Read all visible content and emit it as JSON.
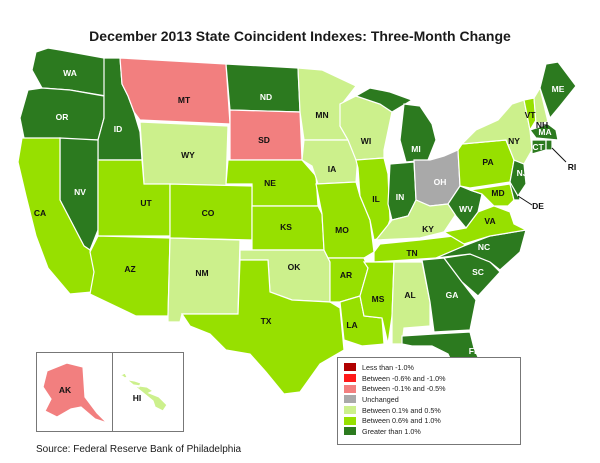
{
  "title": "December 2013 State Coincident Indexes: Three-Month Change",
  "source": "Source: Federal Reserve Bank of Philadelphia",
  "colors": {
    "lt_neg1": "#b00000",
    "neg06_neg10": "#ff1a1a",
    "neg01_neg05": "#f27f7f",
    "unchanged": "#a9a9a9",
    "p01_p05": "#ccf08c",
    "p06_p10": "#97e000",
    "gt1": "#2c7a1f"
  },
  "legend": [
    {
      "label": "Less than -1.0%",
      "color_key": "lt_neg1"
    },
    {
      "label": "Between -0.6% and -1.0%",
      "color_key": "neg06_neg10"
    },
    {
      "label": "Between -0.1% and -0.5%",
      "color_key": "neg01_neg05"
    },
    {
      "label": "Unchanged",
      "color_key": "unchanged"
    },
    {
      "label": "Between 0.1% and 0.5%",
      "color_key": "p01_p05"
    },
    {
      "label": "Between 0.6% and 1.0%",
      "color_key": "p06_p10"
    },
    {
      "label": "Greater than 1.0%",
      "color_key": "gt1"
    }
  ],
  "states": {
    "WA": "gt1",
    "OR": "gt1",
    "ID": "gt1",
    "MT": "neg01_neg05",
    "ND": "gt1",
    "SD": "neg01_neg05",
    "WY": "p01_p05",
    "NV": "gt1",
    "CA": "p06_p10",
    "UT": "p06_p10",
    "CO": "p06_p10",
    "AZ": "p06_p10",
    "NM": "p01_p05",
    "NE": "p06_p10",
    "KS": "p06_p10",
    "OK": "p01_p05",
    "TX": "p06_p10",
    "MN": "p01_p05",
    "IA": "p01_p05",
    "MO": "p06_p10",
    "AR": "p06_p10",
    "LA": "p06_p10",
    "WI": "p01_p05",
    "IL": "p06_p10",
    "MI": "gt1",
    "IN": "gt1",
    "OH": "unchanged",
    "KY": "p01_p05",
    "TN": "p06_p10",
    "MS": "p06_p10",
    "AL": "p01_p05",
    "GA": "gt1",
    "FL": "gt1",
    "SC": "gt1",
    "NC": "gt1",
    "VA": "p06_p10",
    "WV": "gt1",
    "MD": "p06_p10",
    "DE": "gt1",
    "PA": "p06_p10",
    "NY": "p01_p05",
    "NJ": "gt1",
    "CT": "gt1",
    "RI": "gt1",
    "MA": "gt1",
    "VT": "p06_p10",
    "NH": "p01_p05",
    "ME": "gt1",
    "AK": "neg01_neg05",
    "HI": "p01_p05"
  },
  "labels": {
    "WA": "WA",
    "OR": "OR",
    "ID": "ID",
    "MT": "MT",
    "ND": "ND",
    "SD": "SD",
    "WY": "WY",
    "NV": "NV",
    "CA": "CA",
    "UT": "UT",
    "CO": "CO",
    "AZ": "AZ",
    "NM": "NM",
    "NE": "NE",
    "KS": "KS",
    "OK": "OK",
    "TX": "TX",
    "MN": "MN",
    "IA": "IA",
    "MO": "MO",
    "AR": "AR",
    "LA": "LA",
    "WI": "WI",
    "IL": "IL",
    "MI": "MI",
    "IN": "IN",
    "OH": "OH",
    "KY": "KY",
    "TN": "TN",
    "MS": "MS",
    "AL": "AL",
    "GA": "GA",
    "FL": "FL",
    "SC": "SC",
    "NC": "NC",
    "VA": "VA",
    "WV": "WV",
    "MD": "MD",
    "DE": "DE",
    "PA": "PA",
    "NY": "NY",
    "NJ": "NJ",
    "CT": "CT",
    "RI": "RI",
    "MA": "MA",
    "VT": "VT",
    "NH": "NH",
    "ME": "ME",
    "AK": "AK",
    "HI": "HI"
  }
}
